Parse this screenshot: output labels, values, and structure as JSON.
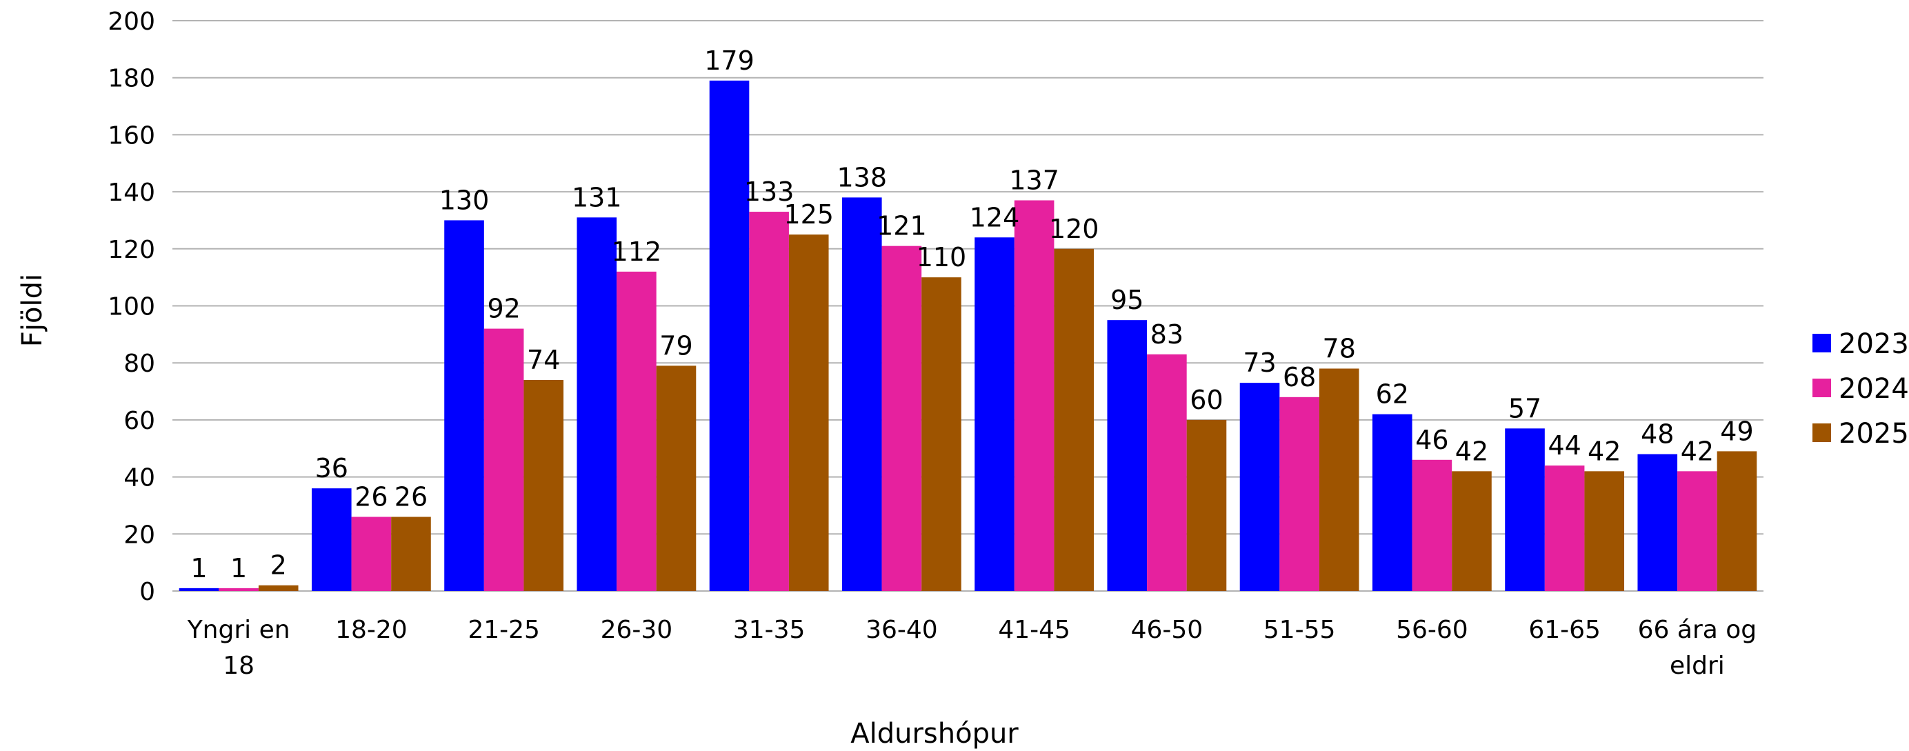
{
  "chart_data": {
    "type": "bar",
    "title": "",
    "xlabel": "Aldurshópur",
    "ylabel": "Fjöldi",
    "ylim": [
      0,
      200
    ],
    "yticks": [
      0,
      20,
      40,
      60,
      80,
      100,
      120,
      140,
      160,
      180,
      200
    ],
    "grid": true,
    "legend_position": "right",
    "categories": [
      "Yngri en 18",
      "18-20",
      "21-25",
      "26-30",
      "31-35",
      "36-40",
      "41-45",
      "46-50",
      "51-55",
      "56-60",
      "61-65",
      "66 ára og eldri"
    ],
    "category_label_lines": [
      [
        "Yngri en",
        "18"
      ],
      [
        "18-20"
      ],
      [
        "21-25"
      ],
      [
        "26-30"
      ],
      [
        "31-35"
      ],
      [
        "36-40"
      ],
      [
        "41-45"
      ],
      [
        "46-50"
      ],
      [
        "51-55"
      ],
      [
        "56-60"
      ],
      [
        "61-65"
      ],
      [
        "66 ára og",
        "eldri"
      ]
    ],
    "series": [
      {
        "name": "2023",
        "color": "#0000ff",
        "values": [
          1,
          36,
          130,
          131,
          179,
          138,
          124,
          95,
          73,
          62,
          57,
          48
        ]
      },
      {
        "name": "2024",
        "color": "#e6219e",
        "values": [
          1,
          26,
          92,
          112,
          133,
          121,
          137,
          83,
          68,
          46,
          44,
          42
        ]
      },
      {
        "name": "2025",
        "color": "#9e5400",
        "values": [
          2,
          26,
          74,
          79,
          125,
          110,
          120,
          60,
          78,
          42,
          42,
          49
        ]
      }
    ],
    "data_labels": true
  }
}
